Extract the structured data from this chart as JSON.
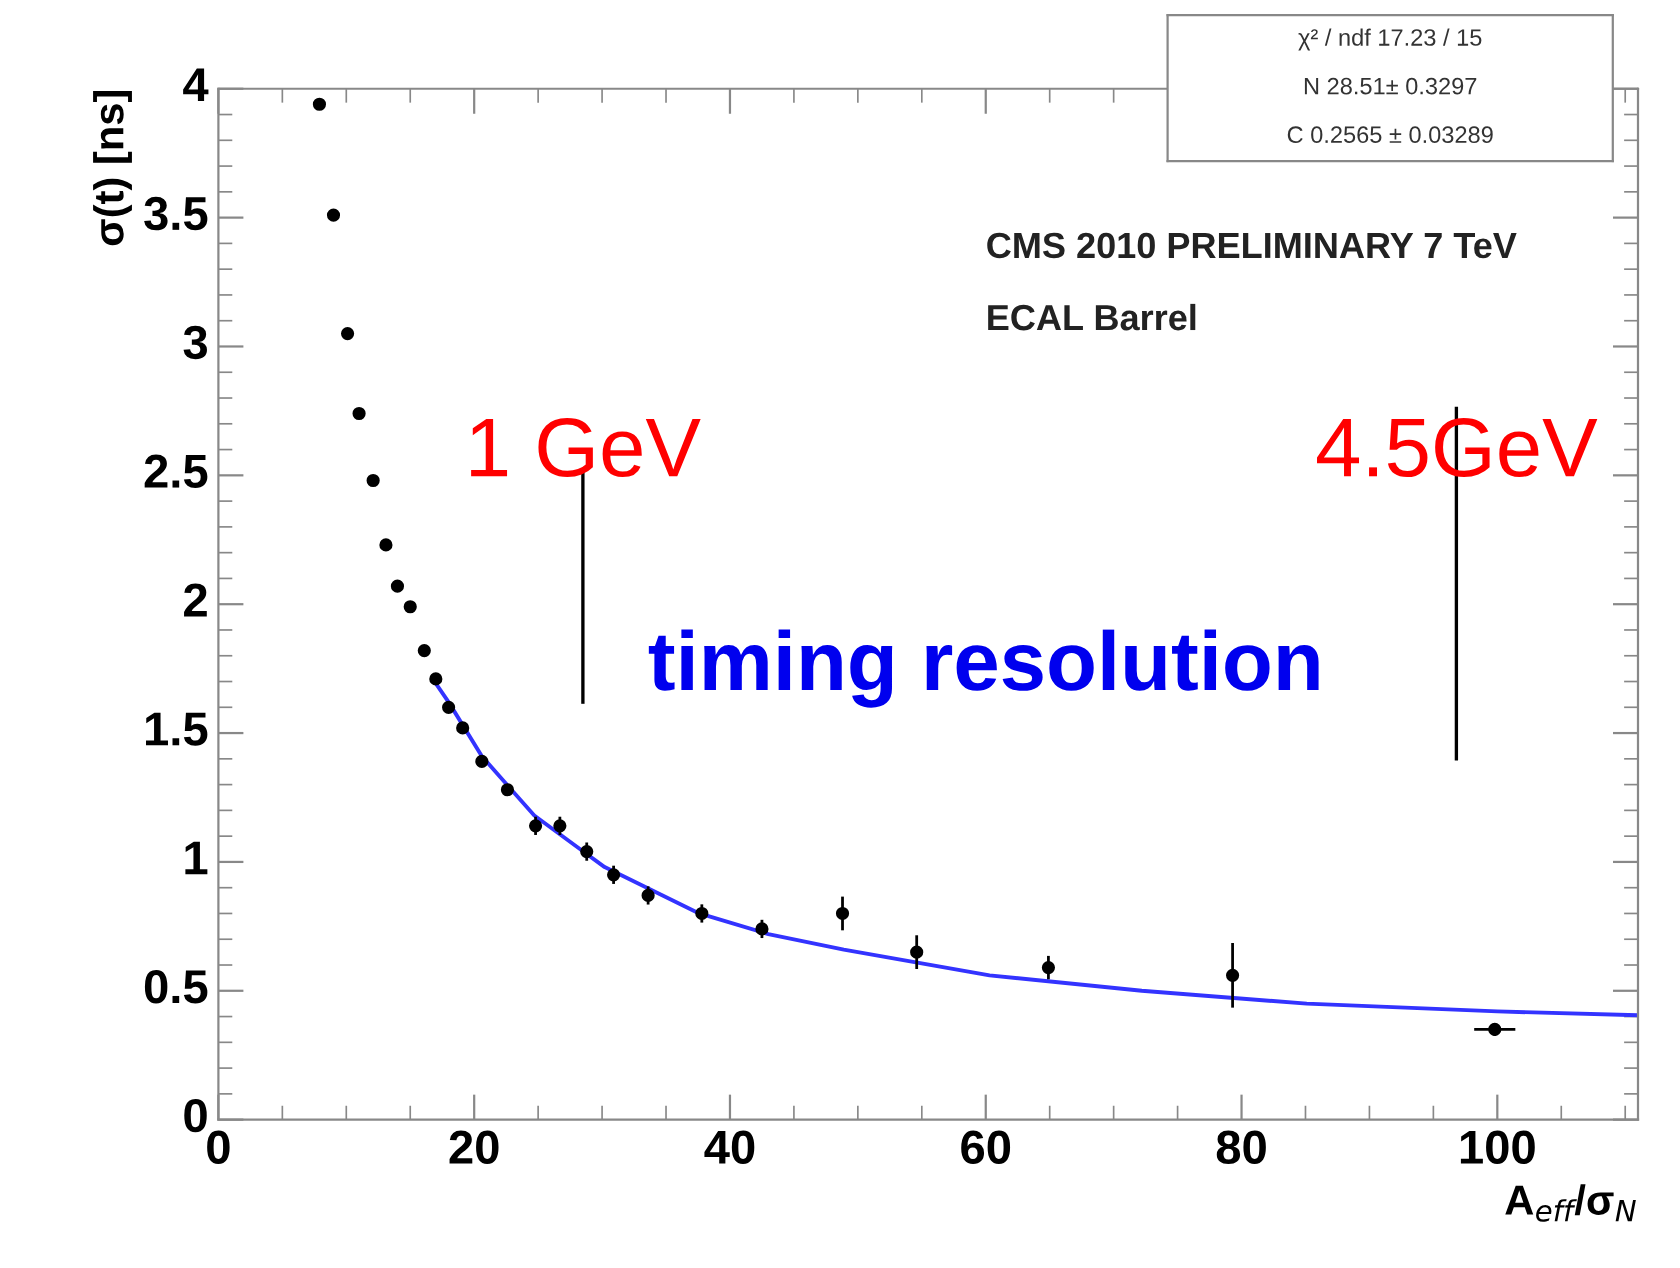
{
  "chart_data": {
    "type": "scatter",
    "xlabel": "A$_{eff}$/σ$_{N}$",
    "ylabel": "σ(t) [ns]",
    "xlim": [
      0,
      111
    ],
    "ylim": [
      0,
      4
    ],
    "xticks": [
      0,
      20,
      40,
      60,
      80,
      100
    ],
    "yticks": [
      0,
      0.5,
      1,
      1.5,
      2,
      2.5,
      3,
      3.5,
      4
    ],
    "grid": false,
    "legend": false,
    "marker": "circle",
    "series": [
      {
        "color": "#000000",
        "x": [
          7.9,
          9.0,
          10.1,
          11.0,
          12.1,
          13.1,
          14.0,
          15.0,
          16.1,
          17.0,
          18.0,
          19.1,
          20.6,
          22.6,
          24.8,
          26.7,
          28.8,
          30.9,
          33.6,
          37.8,
          42.5,
          48.8,
          54.6,
          64.9,
          79.3,
          99.8
        ],
        "values": [
          3.94,
          3.51,
          3.05,
          2.74,
          2.48,
          2.23,
          2.07,
          1.99,
          1.82,
          1.71,
          1.6,
          1.52,
          1.39,
          1.28,
          1.14,
          1.14,
          1.04,
          0.95,
          0.87,
          0.8,
          0.74,
          0.8,
          0.65,
          0.59,
          0.56,
          0.35
        ],
        "errors": [
          null,
          null,
          null,
          null,
          null,
          null,
          null,
          null,
          null,
          null,
          null,
          null,
          null,
          null,
          0.03,
          0.03,
          0.03,
          0.03,
          0.03,
          0.03,
          0.03,
          0.06,
          0.06,
          0.04,
          0.12,
          0.02
        ],
        "xerrors": [
          null,
          null,
          null,
          null,
          null,
          null,
          null,
          null,
          null,
          null,
          null,
          null,
          null,
          null,
          null,
          null,
          null,
          null,
          null,
          null,
          null,
          null,
          null,
          null,
          null,
          1.5
        ]
      },
      {
        "type": "line",
        "color": "#3333ff",
        "marker": "none",
        "line_style": "solid",
        "x": [
          16.9,
          18,
          20.6,
          24.7,
          28,
          30.2,
          37.6,
          43,
          48.9,
          60.3,
          72.2,
          85.1,
          100,
          111
        ],
        "values": [
          1.7,
          1.62,
          1.41,
          1.18,
          1.06,
          0.98,
          0.8,
          0.72,
          0.66,
          0.56,
          0.5,
          0.45,
          0.42,
          0.405
        ]
      }
    ],
    "ref_lines": [
      {
        "axis": "x",
        "value": 28.5,
        "label": "1 GeV",
        "color": "#000000"
      },
      {
        "axis": "x",
        "value": 96.8,
        "label": "4.5GeV",
        "color": "#000000"
      }
    ],
    "annotations": [
      "timing resolution",
      "CMS 2010 PRELIMINARY 7 TeV",
      "ECAL Barrel",
      "χ² / ndf 17.23 / 15",
      "N 28.51± 0.3297",
      "C 0.2565 ± 0.03289"
    ]
  }
}
